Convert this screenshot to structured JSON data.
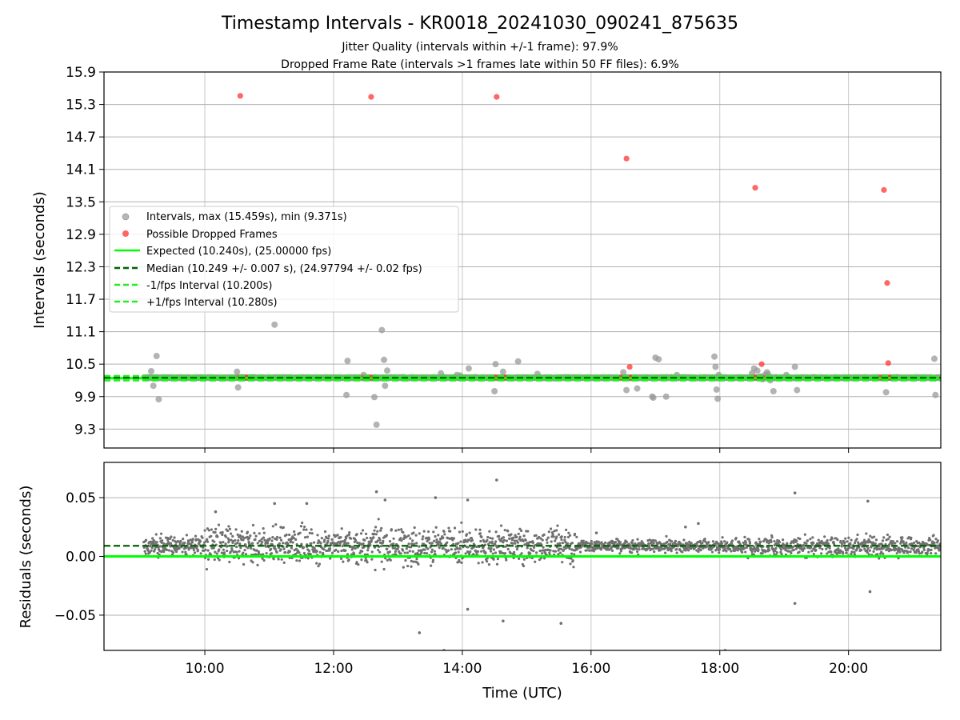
{
  "title": "Timestamp Intervals - KR0018_20241030_090241_875635",
  "subtitle_line1": "Jitter Quality (intervals within +/-1 frame): 97.9%",
  "subtitle_line2": "Dropped Frame Rate (intervals >1 frames late within 50 FF files): 6.9%",
  "colors": {
    "intervals": "#999999",
    "dropped": "#ff3333",
    "expected": "#00ff00",
    "median": "#006400",
    "fps_bounds": "#22ee22",
    "residuals": "#707070",
    "grid": "#b0b0b0"
  },
  "chart_data": [
    {
      "type": "scatter",
      "ylabel": "Intervals (seconds)",
      "ylim": [
        8.95,
        15.9
      ],
      "yticks": [
        9.3,
        9.9,
        10.5,
        11.1,
        11.7,
        12.3,
        12.9,
        13.5,
        14.1,
        14.7,
        15.3,
        15.9
      ],
      "xlim": [
        "08:26",
        "21:26"
      ],
      "xticks": [
        "10:00",
        "12:00",
        "14:00",
        "16:00",
        "18:00",
        "20:00"
      ],
      "grid": true,
      "legend_position": "center-left",
      "legend": [
        "Intervals, max (15.459s), min (9.371s)",
        "Possible Dropped Frames",
        "Expected (10.240s), (25.00000 fps)",
        "Median (10.249 +/- 0.007 s), (24.97794 +/- 0.02 fps)",
        "-1/fps Interval (10.200s)",
        "+1/fps Interval (10.280s)"
      ],
      "reference_lines": {
        "expected": 10.24,
        "median": 10.249,
        "minus_1_fps": 10.2,
        "plus_1_fps": 10.28
      },
      "series": [
        {
          "name": "Intervals, max (15.459s), min (9.371s)",
          "x": [
            "09:10",
            "09:12",
            "09:15",
            "09:17",
            "10:30",
            "10:31",
            "11:05",
            "12:12",
            "12:13",
            "12:28",
            "12:38",
            "12:40",
            "12:45",
            "12:47",
            "12:48",
            "12:50",
            "13:05",
            "13:40",
            "13:50",
            "13:55",
            "13:58",
            "14:06",
            "14:30",
            "14:31",
            "14:38",
            "14:52",
            "14:55",
            "15:10",
            "16:30",
            "16:33",
            "16:43",
            "16:57",
            "16:58",
            "17:00",
            "17:03",
            "17:08",
            "17:10",
            "17:20",
            "17:55",
            "17:56",
            "17:57",
            "17:58",
            "17:59",
            "18:15",
            "18:30",
            "18:32",
            "18:35",
            "18:38",
            "18:40",
            "18:42",
            "18:44",
            "18:45",
            "18:47",
            "18:50",
            "19:02",
            "19:10",
            "19:12",
            "20:35",
            "21:20",
            "21:21"
          ],
          "y": [
            10.37,
            10.1,
            10.65,
            9.85,
            10.36,
            10.07,
            11.23,
            9.93,
            10.56,
            10.3,
            9.89,
            9.38,
            11.13,
            10.58,
            10.1,
            10.38,
            10.26,
            10.33,
            10.25,
            10.3,
            10.29,
            10.42,
            10.0,
            10.5,
            10.36,
            10.55,
            10.25,
            10.32,
            10.35,
            10.02,
            10.05,
            9.9,
            9.88,
            10.62,
            10.59,
            10.25,
            9.9,
            10.3,
            10.64,
            10.45,
            10.03,
            9.86,
            10.3,
            10.25,
            10.33,
            10.42,
            10.38,
            10.27,
            10.22,
            10.3,
            10.35,
            10.31,
            10.2,
            10.0,
            10.3,
            10.45,
            10.02,
            9.98,
            10.6,
            9.93
          ]
        },
        {
          "name": "Possible Dropped Frames",
          "x": [
            "10:32",
            "10:34",
            "10:36",
            "10:38",
            "10:40",
            "10:42",
            "12:28",
            "12:30",
            "12:32",
            "12:34",
            "12:36",
            "12:38",
            "14:30",
            "14:32",
            "14:34",
            "14:36",
            "14:38",
            "14:40",
            "16:28",
            "16:30",
            "16:32",
            "16:34",
            "16:36",
            "16:38",
            "18:30",
            "18:32",
            "18:34",
            "18:36",
            "18:38",
            "18:40",
            "20:30",
            "20:32",
            "20:34",
            "20:36",
            "20:38",
            "20:40",
            "10:33",
            "12:35",
            "14:32",
            "16:33",
            "16:36",
            "18:33",
            "18:39",
            "20:33",
            "20:36",
            "20:37"
          ],
          "y": [
            10.25,
            10.25,
            10.25,
            10.25,
            10.25,
            10.25,
            10.25,
            10.25,
            10.25,
            10.25,
            10.25,
            10.25,
            10.25,
            10.25,
            10.25,
            10.25,
            10.25,
            10.25,
            10.25,
            10.25,
            10.25,
            10.25,
            10.25,
            10.25,
            10.25,
            10.25,
            10.25,
            10.25,
            10.25,
            10.25,
            10.25,
            10.25,
            10.25,
            10.25,
            10.25,
            10.25,
            15.459,
            15.44,
            15.44,
            14.3,
            10.45,
            13.76,
            10.5,
            13.72,
            12.0,
            10.52
          ]
        },
        {
          "name": "Expected (10.240s), (25.00000 fps)",
          "x": [
            "08:26",
            "21:26"
          ],
          "y": [
            10.24,
            10.24
          ]
        },
        {
          "name": "Median (10.249 +/- 0.007 s), (24.97794 +/- 0.02 fps)",
          "x": [
            "08:26",
            "21:26"
          ],
          "y": [
            10.249,
            10.249
          ]
        },
        {
          "name": "-1/fps Interval (10.200s)",
          "x": [
            "08:26",
            "21:26"
          ],
          "y": [
            10.2,
            10.2
          ]
        },
        {
          "name": "+1/fps Interval (10.280s)",
          "x": [
            "08:26",
            "21:26"
          ],
          "y": [
            10.28,
            10.28
          ]
        }
      ]
    },
    {
      "type": "scatter",
      "ylabel": "Residuals (seconds)",
      "xlabel": "Time (UTC)",
      "ylim": [
        -0.08,
        0.08
      ],
      "yticks": [
        -0.05,
        0.0,
        0.05
      ],
      "ytick_labels": [
        "−0.05",
        "0.00",
        "0.05"
      ],
      "xlim": [
        "08:26",
        "21:26"
      ],
      "xticks": [
        "10:00",
        "12:00",
        "14:00",
        "16:00",
        "18:00",
        "20:00"
      ],
      "grid": true,
      "reference_lines": {
        "expected": 0.0,
        "median": 0.009
      },
      "series": [
        {
          "name": "",
          "x": [
            "10:10",
            "11:05",
            "11:35",
            "12:40",
            "12:48",
            "13:20",
            "13:35",
            "13:43",
            "14:05",
            "14:05",
            "14:32",
            "14:38",
            "15:32",
            "16:05",
            "17:28",
            "17:40",
            "18:05",
            "19:10",
            "19:10",
            "20:18",
            "20:20"
          ],
          "y": [
            0.038,
            0.045,
            0.045,
            0.055,
            0.048,
            -0.065,
            0.05,
            -0.08,
            0.048,
            -0.045,
            0.065,
            -0.055,
            -0.057,
            0.02,
            0.025,
            0.028,
            -0.08,
            0.054,
            -0.04,
            0.047,
            -0.03
          ]
        }
      ]
    }
  ]
}
